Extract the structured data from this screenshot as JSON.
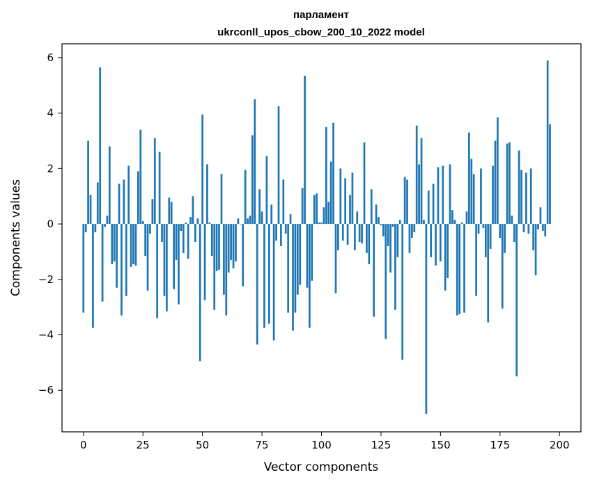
{
  "chart_data": {
    "type": "bar",
    "title_line1": "парламент",
    "title_line2": "ukrconll_upos_cbow_200_10_2022 model",
    "xlabel": "Vector components",
    "ylabel": "Components values",
    "xlim": [
      -9,
      209
    ],
    "ylim": [
      -7.5,
      6.5
    ],
    "xticks": [
      0,
      25,
      50,
      75,
      100,
      125,
      150,
      175,
      200
    ],
    "yticks": [
      -6,
      -4,
      -2,
      0,
      2,
      4,
      6
    ],
    "grid": false,
    "bar_color": "#1f77b4",
    "values": [
      -3.2,
      -0.3,
      3.0,
      1.05,
      -3.75,
      -0.3,
      1.5,
      5.65,
      -2.8,
      -0.1,
      0.3,
      2.8,
      -1.45,
      -1.35,
      -2.3,
      1.45,
      -3.3,
      1.6,
      -2.6,
      2.1,
      -1.55,
      -1.45,
      -1.5,
      1.9,
      3.4,
      0.1,
      -1.15,
      -2.4,
      -0.35,
      0.9,
      3.1,
      -3.4,
      2.6,
      -0.65,
      -2.6,
      -3.15,
      0.95,
      0.8,
      -2.35,
      -1.3,
      -2.9,
      -0.25,
      -1.05,
      0.05,
      -1.25,
      0.25,
      1.0,
      -0.65,
      0.2,
      -4.95,
      3.95,
      -2.75,
      2.15,
      0.05,
      -1.15,
      -3.1,
      -1.7,
      -1.65,
      1.8,
      -2.55,
      -3.3,
      -1.75,
      -1.3,
      -1.6,
      -1.35,
      0.2,
      0.0,
      -2.25,
      1.95,
      0.2,
      0.3,
      3.2,
      4.5,
      -4.35,
      1.25,
      0.45,
      -3.75,
      2.45,
      -3.6,
      0.7,
      -4.2,
      -0.6,
      4.25,
      -0.8,
      1.6,
      -0.35,
      -3.2,
      0.35,
      -3.85,
      -3.2,
      -2.55,
      -2.2,
      1.3,
      5.35,
      -2.3,
      -3.75,
      -2.05,
      1.05,
      1.1,
      0.05,
      0.05,
      0.6,
      3.5,
      0.8,
      2.25,
      3.65,
      -2.5,
      -0.95,
      2.0,
      -0.6,
      1.65,
      -0.75,
      1.05,
      1.85,
      -0.95,
      0.45,
      -0.65,
      -0.7,
      2.95,
      -1.05,
      -1.45,
      1.25,
      -3.35,
      0.7,
      0.25,
      -0.05,
      -0.45,
      -4.15,
      -0.8,
      -1.75,
      -0.1,
      -3.1,
      -1.2,
      0.15,
      -4.9,
      1.7,
      1.6,
      -1.05,
      -0.5,
      -0.3,
      3.55,
      2.15,
      3.1,
      0.15,
      -6.85,
      1.2,
      -1.2,
      1.45,
      -1.5,
      2.05,
      -1.35,
      2.1,
      -2.4,
      -1.95,
      2.15,
      0.5,
      0.15,
      -3.3,
      -3.25,
      0.05,
      -3.2,
      0.45,
      3.3,
      2.35,
      1.8,
      -2.6,
      -0.35,
      2.0,
      -0.15,
      -1.2,
      -3.55,
      -0.9,
      2.1,
      3.0,
      3.85,
      -0.5,
      -3.05,
      -1.05,
      2.9,
      2.95,
      0.3,
      -0.65,
      -5.5,
      2.65,
      1.95,
      -0.3,
      1.85,
      -0.35,
      2.0,
      -0.95,
      -1.85,
      -0.2,
      0.6,
      -0.25,
      -0.45,
      5.9,
      3.6
    ]
  }
}
